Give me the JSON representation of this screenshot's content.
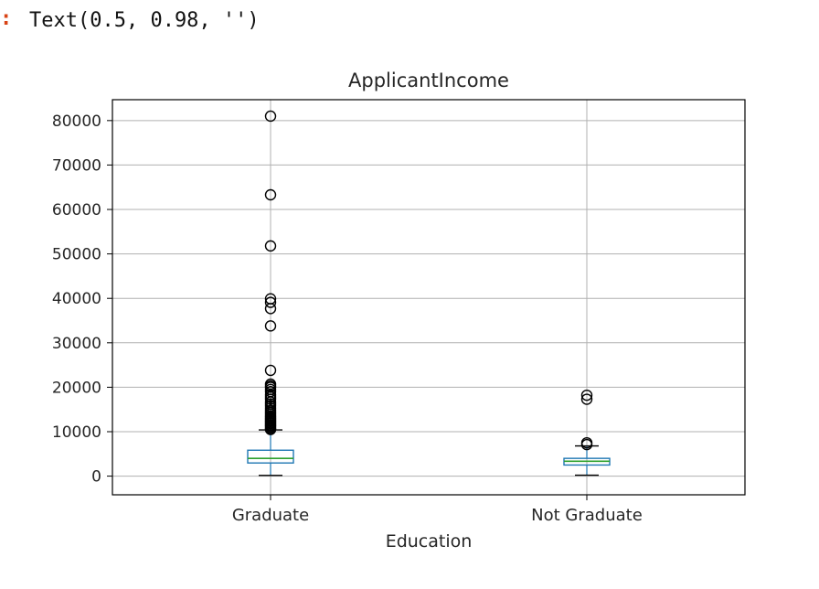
{
  "output": {
    "prompt": ":",
    "text": "Text(0.5, 0.98, '')"
  },
  "chart_data": {
    "type": "box",
    "title": "ApplicantIncome",
    "xlabel": "Education",
    "ylabel": "",
    "ylim": [
      -4200,
      84700
    ],
    "yticks": [
      0,
      10000,
      20000,
      30000,
      40000,
      50000,
      60000,
      70000,
      80000
    ],
    "ytick_labels": [
      "0",
      "10000",
      "20000",
      "30000",
      "40000",
      "50000",
      "60000",
      "70000",
      "80000"
    ],
    "grid": true,
    "categories": [
      "Graduate",
      "Not Graduate"
    ],
    "boxes": [
      {
        "category": "Graduate",
        "whisker_low": 150,
        "q1": 2960,
        "median": 4000,
        "q3": 5830,
        "whisker_high": 10400,
        "outliers": [
          10500,
          10700,
          11000,
          11300,
          11500,
          11800,
          12000,
          12300,
          12500,
          12800,
          13000,
          13300,
          13600,
          14000,
          14400,
          14800,
          15300,
          15800,
          16250,
          16700,
          17300,
          17800,
          18300,
          19000,
          19500,
          20000,
          20300,
          20700,
          23800,
          33800,
          37700,
          39100,
          39900,
          51800,
          63300,
          81000
        ]
      },
      {
        "category": "Not Graduate",
        "whisker_low": 210,
        "q1": 2500,
        "median": 3350,
        "q3": 4000,
        "whisker_high": 6800,
        "outliers": [
          7100,
          7500,
          17300,
          18200
        ]
      }
    ],
    "colors": {
      "box": "#1f77b4",
      "median": "#2ca02c",
      "whisker": "#000000",
      "flier": "#000000",
      "grid": "#b0b0b0"
    }
  }
}
